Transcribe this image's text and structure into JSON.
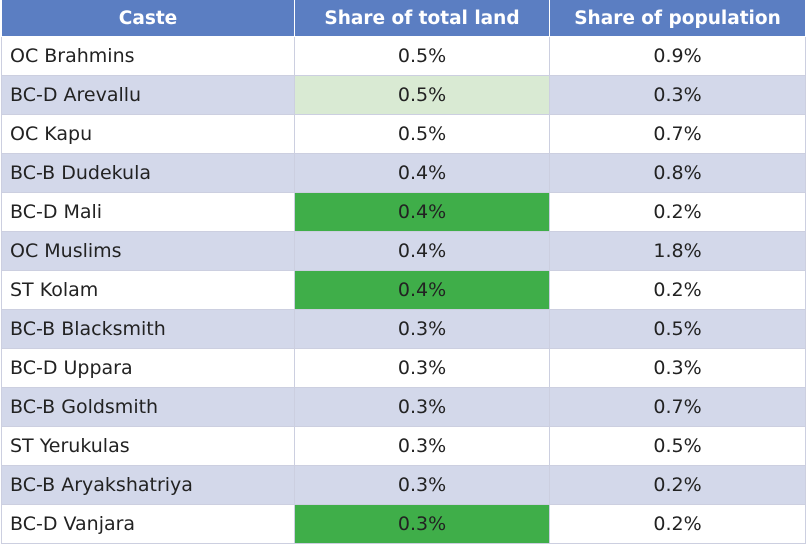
{
  "table": {
    "headers": [
      "Caste",
      "Share of total land",
      "Share of population"
    ],
    "colors": {
      "header_bg": "#5b7ec2",
      "band_bg": "#d3d8ea",
      "highlight_light": "#d9ead3",
      "highlight_strong": "#3fae49"
    },
    "rows": [
      {
        "caste": "OC Brahmins",
        "land": "0.5%",
        "population": "0.9%",
        "land_highlight": "none"
      },
      {
        "caste": "BC-D Arevallu",
        "land": "0.5%",
        "population": "0.3%",
        "land_highlight": "light"
      },
      {
        "caste": "OC Kapu",
        "land": "0.5%",
        "population": "0.7%",
        "land_highlight": "none"
      },
      {
        "caste": "BC-B Dudekula",
        "land": "0.4%",
        "population": "0.8%",
        "land_highlight": "none"
      },
      {
        "caste": "BC-D Mali",
        "land": "0.4%",
        "population": "0.2%",
        "land_highlight": "strong"
      },
      {
        "caste": "OC Muslims",
        "land": "0.4%",
        "population": "1.8%",
        "land_highlight": "none"
      },
      {
        "caste": "ST Kolam",
        "land": "0.4%",
        "population": "0.2%",
        "land_highlight": "strong"
      },
      {
        "caste": "BC-B Blacksmith",
        "land": "0.3%",
        "population": "0.5%",
        "land_highlight": "none"
      },
      {
        "caste": "BC-D Uppara",
        "land": "0.3%",
        "population": "0.3%",
        "land_highlight": "none"
      },
      {
        "caste": "BC-B Goldsmith",
        "land": "0.3%",
        "population": "0.7%",
        "land_highlight": "none"
      },
      {
        "caste": "ST Yerukulas",
        "land": "0.3%",
        "population": "0.5%",
        "land_highlight": "none"
      },
      {
        "caste": "BC-B Aryakshatriya",
        "land": "0.3%",
        "population": "0.2%",
        "land_highlight": "none"
      },
      {
        "caste": "BC-D Vanjara",
        "land": "0.3%",
        "population": "0.2%",
        "land_highlight": "strong"
      }
    ]
  }
}
